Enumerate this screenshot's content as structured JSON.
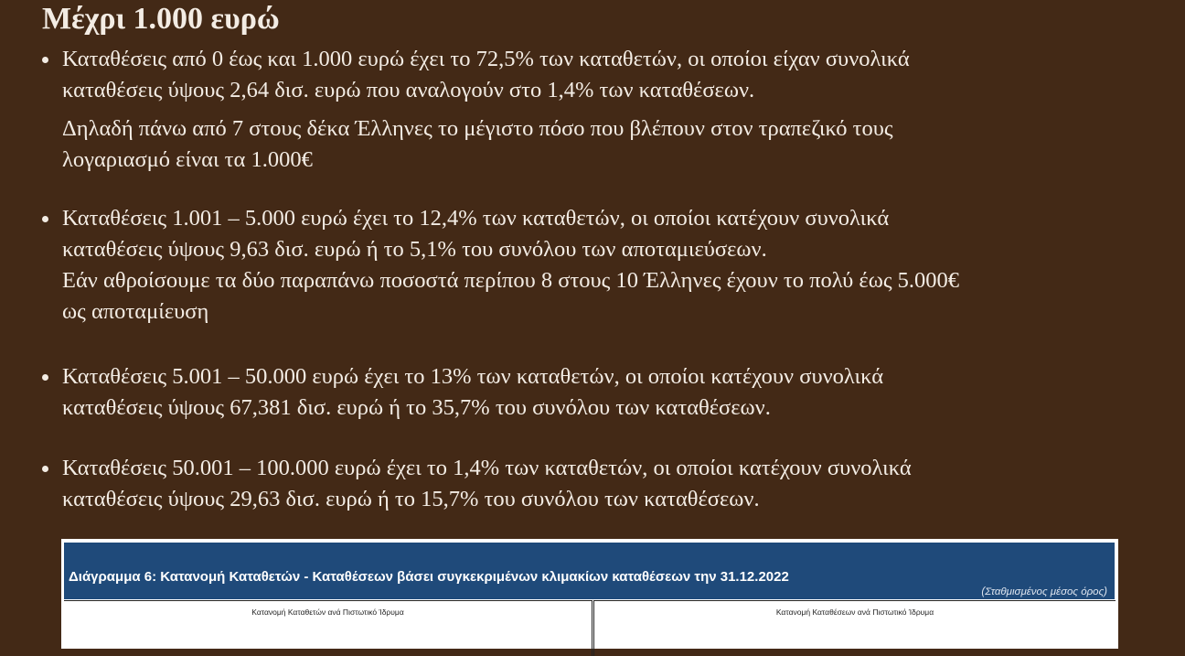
{
  "heading": "Μέχρι 1.000 ευρώ",
  "bullets": [
    {
      "lines": [
        "Καταθέσεις από 0 έως και 1.000 ευρώ έχει το 72,5% των καταθετών, οι οποίοι είχαν συνολικά",
        "καταθέσεις ύψους 2,64 δισ. ευρώ που αναλογούν στο 1,4% των καταθέσεων.",
        "Δηλαδή πάνω από 7 στους δέκα Έλληνες το μέγιστο πόσο που βλέπουν στον τραπεζικό τους",
        "λογαριασμό είναι τα 1.000€"
      ]
    },
    {
      "lines": [
        "Καταθέσεις 1.001 – 5.000 ευρώ έχει το 12,4% των καταθετών, οι οποίοι κατέχουν συνολικά",
        "καταθέσεις ύψους 9,63 δισ. ευρώ ή το 5,1% του συνόλου των αποταμιεύσεων.",
        "Εάν αθροίσουμε τα δύο παραπάνω ποσοστά περίπου 8 στους 10 Έλληνες έχουν το πολύ έως 5.000€",
        "ως αποταμίευση"
      ]
    },
    {
      "lines": [
        "Καταθέσεις 5.001 – 50.000 ευρώ έχει το 13% των καταθετών, οι οποίοι κατέχουν συνολικά",
        "καταθέσεις ύψους 67,381 δισ. ευρώ ή το 35,7% του συνόλου των καταθέσεων."
      ]
    },
    {
      "lines": [
        "Καταθέσεις 50.001 – 100.000 ευρώ έχει το 1,4% των καταθετών, οι οποίοι κατέχουν συνολικά",
        "καταθέσεις ύψους 29,63 δισ. ευρώ ή το 15,7% του συνόλου των καταθέσεων."
      ]
    }
  ],
  "figure": {
    "title": "Διάγραμμα 6: Κατανομή Καταθετών - Καταθέσεων βάσει συγκεκριμένων κλιμακίων καταθέσεων την 31.12.2022",
    "subtitle": "(Σταθμισμένος μέσος όρος)",
    "left_panel_title": "Κατανομή Καταθετών ανά Πιστωτικό Ίδρυμα",
    "right_panel_title": "Κατανομή Καταθέσεων ανά Πιστωτικό Ίδρυμα",
    "header_color": "#1f4a7a"
  },
  "colors": {
    "background": "#432916",
    "text": "#f3ece4"
  }
}
